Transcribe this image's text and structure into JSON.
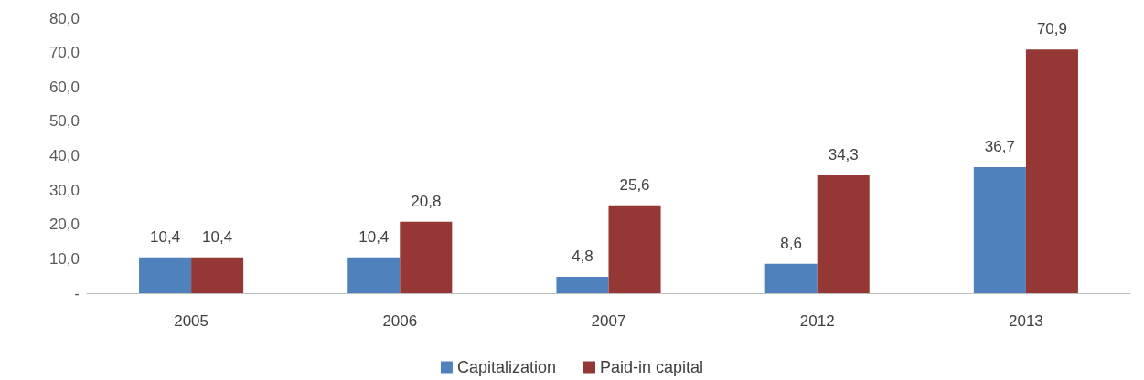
{
  "chart_data": {
    "type": "bar",
    "categories": [
      "2005",
      "2006",
      "2007",
      "2012",
      "2013"
    ],
    "series": [
      {
        "name": "Capitalization",
        "color": "#4f81bd",
        "values": [
          10.4,
          10.4,
          4.8,
          8.6,
          36.7
        ],
        "value_labels": [
          "10,4",
          "10,4",
          "4,8",
          "8,6",
          "36,7"
        ]
      },
      {
        "name": "Paid-in capital",
        "color": "#953735",
        "values": [
          10.4,
          20.8,
          25.6,
          34.3,
          70.9
        ],
        "value_labels": [
          "10,4",
          "20,8",
          "25,6",
          "34,3",
          "70,9"
        ]
      }
    ],
    "ylim": [
      0,
      80
    ],
    "yticks": [
      {
        "value": 0,
        "label": "-"
      },
      {
        "value": 10,
        "label": "10,0"
      },
      {
        "value": 20,
        "label": "20,0"
      },
      {
        "value": 30,
        "label": "30,0"
      },
      {
        "value": 40,
        "label": "40,0"
      },
      {
        "value": 50,
        "label": "50,0"
      },
      {
        "value": 60,
        "label": "60,0"
      },
      {
        "value": 70,
        "label": "70,0"
      },
      {
        "value": 80,
        "label": "80,0"
      }
    ],
    "grid": false,
    "legend": "bottom"
  }
}
